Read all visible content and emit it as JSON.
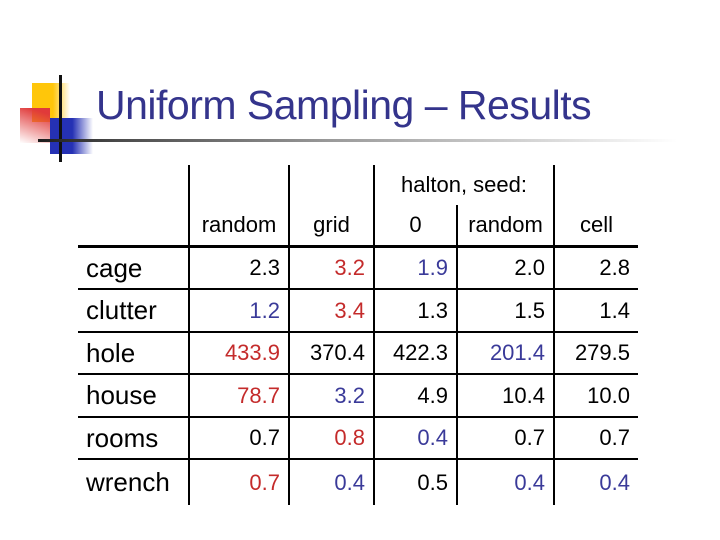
{
  "slide": {
    "title": "Uniform Sampling – Results",
    "title_color": "#34348C",
    "decoration_colors": {
      "yellow": "#FFC60A",
      "red": "#E03A3A",
      "blue": "#2531B4"
    }
  },
  "table": {
    "group_header": "halton, seed:",
    "columns": [
      "random",
      "grid",
      "0",
      "random",
      "cell"
    ],
    "value_colors": {
      "red": "#C42B2B",
      "blue": "#3A3A99",
      "black": "#000000"
    },
    "rows": [
      {
        "label": "cage",
        "values": [
          {
            "text": "2.3",
            "color": "black"
          },
          {
            "text": "3.2",
            "color": "red"
          },
          {
            "text": "1.9",
            "color": "blue"
          },
          {
            "text": "2.0",
            "color": "black"
          },
          {
            "text": "2.8",
            "color": "black"
          }
        ]
      },
      {
        "label": "clutter",
        "values": [
          {
            "text": "1.2",
            "color": "blue"
          },
          {
            "text": "3.4",
            "color": "red"
          },
          {
            "text": "1.3",
            "color": "black"
          },
          {
            "text": "1.5",
            "color": "black"
          },
          {
            "text": "1.4",
            "color": "black"
          }
        ]
      },
      {
        "label": "hole",
        "values": [
          {
            "text": "433.9",
            "color": "red"
          },
          {
            "text": "370.4",
            "color": "black"
          },
          {
            "text": "422.3",
            "color": "black"
          },
          {
            "text": "201.4",
            "color": "blue"
          },
          {
            "text": "279.5",
            "color": "black"
          }
        ]
      },
      {
        "label": "house",
        "values": [
          {
            "text": "78.7",
            "color": "red"
          },
          {
            "text": "3.2",
            "color": "blue"
          },
          {
            "text": "4.9",
            "color": "black"
          },
          {
            "text": "10.4",
            "color": "black"
          },
          {
            "text": "10.0",
            "color": "black"
          }
        ]
      },
      {
        "label": "rooms",
        "values": [
          {
            "text": "0.7",
            "color": "black"
          },
          {
            "text": "0.8",
            "color": "red"
          },
          {
            "text": "0.4",
            "color": "blue"
          },
          {
            "text": "0.7",
            "color": "black"
          },
          {
            "text": "0.7",
            "color": "black"
          }
        ]
      },
      {
        "label": "wrench",
        "values": [
          {
            "text": "0.7",
            "color": "red"
          },
          {
            "text": "0.4",
            "color": "blue"
          },
          {
            "text": "0.5",
            "color": "black"
          },
          {
            "text": "0.4",
            "color": "blue"
          },
          {
            "text": "0.4",
            "color": "blue"
          }
        ]
      }
    ]
  },
  "chart_data": {
    "type": "table",
    "title": "Uniform Sampling – Results",
    "column_group": {
      "label": "halton, seed:",
      "spans": [
        "0",
        "random"
      ]
    },
    "columns": [
      "random",
      "grid",
      "0",
      "random",
      "cell"
    ],
    "row_labels": [
      "cage",
      "clutter",
      "hole",
      "house",
      "rooms",
      "wrench"
    ],
    "values": [
      [
        2.3,
        3.2,
        1.9,
        2.0,
        2.8
      ],
      [
        1.2,
        3.4,
        1.3,
        1.5,
        1.4
      ],
      [
        433.9,
        370.4,
        422.3,
        201.4,
        279.5
      ],
      [
        78.7,
        3.2,
        4.9,
        10.4,
        10.0
      ],
      [
        0.7,
        0.8,
        0.4,
        0.7,
        0.7
      ],
      [
        0.7,
        0.4,
        0.5,
        0.4,
        0.4
      ]
    ],
    "highlight_rules": {
      "red": "row maximum",
      "blue": "row minimum"
    }
  }
}
